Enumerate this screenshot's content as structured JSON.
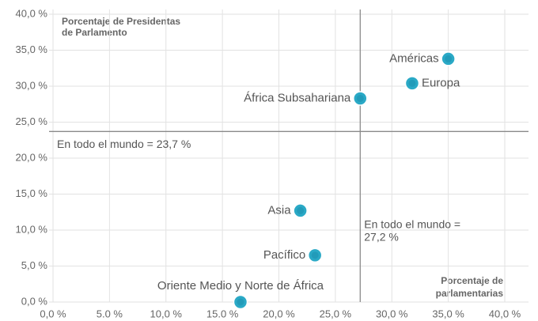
{
  "chart_data": {
    "type": "scatter",
    "y_label": [
      "Porcentaje de Presidentas",
      "de Parlamento"
    ],
    "x_label": [
      "Porcentaje de",
      "parlamentarias"
    ],
    "categories": [
      "Américas",
      "Europa",
      "África Subsahariana",
      "Asia",
      "Pacífico",
      "Oriente Medio y Norte de África"
    ],
    "x": [
      35.0,
      31.8,
      27.2,
      21.9,
      23.2,
      16.6
    ],
    "values": [
      33.8,
      30.4,
      28.3,
      12.7,
      6.5,
      0.0
    ],
    "color": "#2aa9c6",
    "xlim": [
      0,
      40
    ],
    "ylim": [
      0,
      40
    ],
    "xticks": [
      {
        "value": 0,
        "label": "0,0 %"
      },
      {
        "value": 5,
        "label": "5.0 %"
      },
      {
        "value": 10,
        "label": "10,0 %"
      },
      {
        "value": 15,
        "label": "15.0 %"
      },
      {
        "value": 20,
        "label": "20,0 %"
      },
      {
        "value": 25,
        "label": "25,0 %"
      },
      {
        "value": 30,
        "label": "30,0 %"
      },
      {
        "value": 35,
        "label": "35,0 %"
      },
      {
        "value": 40,
        "label": "40,0 %"
      }
    ],
    "yticks": [
      {
        "value": 0,
        "label": "0,0 %"
      },
      {
        "value": 5,
        "label": "5,0 %"
      },
      {
        "value": 10,
        "label": "10,0 %"
      },
      {
        "value": 15,
        "label": "15,0 %"
      },
      {
        "value": 20,
        "label": "20,0 %"
      },
      {
        "value": 25,
        "label": "25,0 %"
      },
      {
        "value": 30,
        "label": "30,0 %"
      },
      {
        "value": 35,
        "label": "35,0 %"
      },
      {
        "value": 40,
        "label": "40,0 %"
      }
    ],
    "grid": true,
    "reference_lines": [
      {
        "axis": "y",
        "value": 23.7,
        "label": [
          "En todo el mundo  = 23,7 %"
        ]
      },
      {
        "axis": "x",
        "value": 27.2,
        "label": [
          "En todo el mundo =",
          "27,2 %"
        ]
      }
    ]
  }
}
